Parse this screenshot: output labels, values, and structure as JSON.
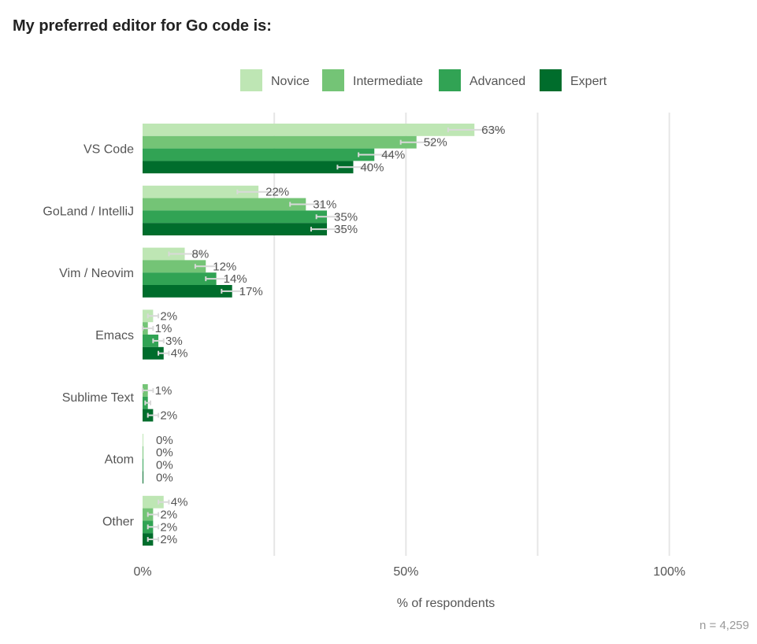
{
  "chart_data": {
    "type": "bar",
    "orientation": "horizontal",
    "title": "My preferred editor for Go code is:",
    "xlabel": "% of respondents",
    "ylabel": "",
    "xlim": [
      0,
      115
    ],
    "x_ticks": [
      0,
      50,
      100
    ],
    "x_tick_labels": [
      "0%",
      "50%",
      "100%"
    ],
    "grid": true,
    "legend_position": "top",
    "categories": [
      "VS Code",
      "GoLand / IntelliJ",
      "Vim / Neovim",
      "Emacs",
      "Sublime Text",
      "Atom",
      "Other"
    ],
    "series": [
      {
        "name": "Novice",
        "color": "#bee6b4",
        "values": [
          63,
          22,
          8,
          2,
          null,
          0,
          4
        ],
        "labels": [
          "63%",
          "22%",
          "8%",
          "2%",
          "",
          "0%",
          "4%"
        ],
        "error": [
          5,
          4,
          3,
          1,
          null,
          0,
          1
        ]
      },
      {
        "name": "Intermediate",
        "color": "#74c476",
        "values": [
          52,
          31,
          12,
          1,
          1,
          0,
          2
        ],
        "labels": [
          "52%",
          "31%",
          "12%",
          "1%",
          "1%",
          "0%",
          "2%"
        ],
        "error": [
          3,
          3,
          2,
          1,
          1,
          0,
          1
        ]
      },
      {
        "name": "Advanced",
        "color": "#31a354",
        "values": [
          44,
          35,
          14,
          3,
          1,
          0,
          2
        ],
        "labels": [
          "44%",
          "35%",
          "14%",
          "3%",
          "",
          "0%",
          "2%"
        ],
        "error": [
          3,
          2,
          2,
          1,
          0.5,
          0,
          1
        ]
      },
      {
        "name": "Expert",
        "color": "#006d2c",
        "values": [
          40,
          35,
          17,
          4,
          2,
          0,
          2
        ],
        "labels": [
          "40%",
          "35%",
          "17%",
          "4%",
          "2%",
          "0%",
          "2%"
        ],
        "error": [
          3,
          3,
          2,
          1,
          1,
          0,
          1
        ]
      }
    ],
    "note": "n =  4,259"
  }
}
